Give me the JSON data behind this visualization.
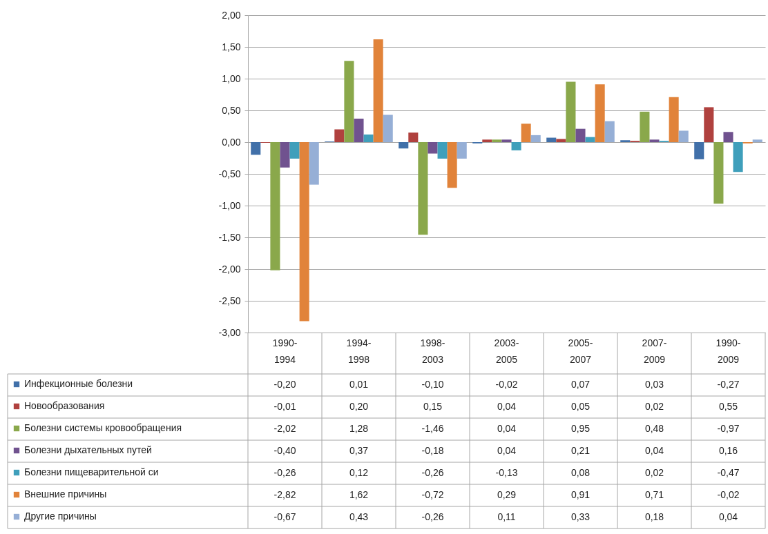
{
  "chart_data": {
    "type": "bar",
    "categories": [
      "1990-1994",
      "1994-1998",
      "1998-2003",
      "2003-2005",
      "2005-2007",
      "2007-2009",
      "1990-2009"
    ],
    "series": [
      {
        "name": "Инфекционные болезни",
        "color": "#4170a9",
        "values": [
          -0.2,
          0.01,
          -0.1,
          -0.02,
          0.07,
          0.03,
          -0.27
        ],
        "value_labels": [
          "-0,20",
          "0,01",
          "-0,10",
          "-0,02",
          "0,07",
          "0,03",
          "-0,27"
        ]
      },
      {
        "name": "Новообразования",
        "color": "#b0413e",
        "values": [
          -0.01,
          0.2,
          0.15,
          0.04,
          0.05,
          0.02,
          0.55
        ],
        "value_labels": [
          "-0,01",
          "0,20",
          "0,15",
          "0,04",
          "0,05",
          "0,02",
          "0,55"
        ]
      },
      {
        "name": "Болезни системы кровообращения",
        "color": "#8aa84b",
        "values": [
          -2.02,
          1.28,
          -1.46,
          0.04,
          0.95,
          0.48,
          -0.97
        ],
        "value_labels": [
          "-2,02",
          "1,28",
          "-1,46",
          "0,04",
          "0,95",
          "0,48",
          "-0,97"
        ]
      },
      {
        "name": "Болезни дыхательных путей",
        "color": "#70528f",
        "values": [
          -0.4,
          0.37,
          -0.18,
          0.04,
          0.21,
          0.04,
          0.16
        ],
        "value_labels": [
          "-0,40",
          "0,37",
          "-0,18",
          "0,04",
          "0,21",
          "0,04",
          "0,16"
        ]
      },
      {
        "name": "Болезни пищеварительной си",
        "color": "#3f9fbb",
        "values": [
          -0.26,
          0.12,
          -0.26,
          -0.13,
          0.08,
          0.02,
          -0.47
        ],
        "value_labels": [
          "-0,26",
          "0,12",
          "-0,26",
          "-0,13",
          "0,08",
          "0,02",
          "-0,47"
        ]
      },
      {
        "name": "Внешние причины",
        "color": "#e1833a",
        "values": [
          -2.82,
          1.62,
          -0.72,
          0.29,
          0.91,
          0.71,
          -0.02
        ],
        "value_labels": [
          "-2,82",
          "1,62",
          "-0,72",
          "0,29",
          "0,91",
          "0,71",
          "-0,02"
        ]
      },
      {
        "name": "Другие причины",
        "color": "#96afd6",
        "values": [
          -0.67,
          0.43,
          -0.26,
          0.11,
          0.33,
          0.18,
          0.04
        ],
        "value_labels": [
          "-0,67",
          "0,43",
          "-0,26",
          "0,11",
          "0,33",
          "0,18",
          "0,04"
        ]
      }
    ],
    "ylim": [
      -3,
      2
    ],
    "yticks": [
      {
        "value": -3,
        "label": "-3,00"
      },
      {
        "value": -2.5,
        "label": "-2,50"
      },
      {
        "value": -2,
        "label": "-2,00"
      },
      {
        "value": -1.5,
        "label": "-1,50"
      },
      {
        "value": -1,
        "label": "-1,00"
      },
      {
        "value": -0.5,
        "label": "-0,50"
      },
      {
        "value": 0,
        "label": "0,00"
      },
      {
        "value": 0.5,
        "label": "0,50"
      },
      {
        "value": 1,
        "label": "1,00"
      },
      {
        "value": 1.5,
        "label": "1,50"
      },
      {
        "value": 2,
        "label": "2,00"
      }
    ],
    "grid": "y",
    "legend": "bottom left"
  }
}
